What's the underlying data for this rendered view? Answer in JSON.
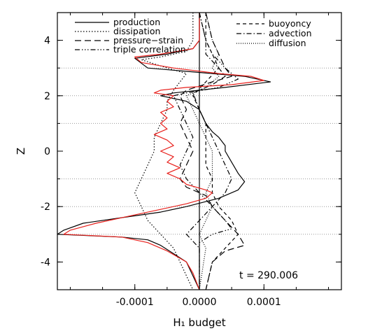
{
  "chart_data": {
    "type": "line",
    "orientation": "vertical-profiles",
    "xlabel": "H₁ budget",
    "ylabel": "Z",
    "xlim": [
      -0.00022,
      0.00022
    ],
    "ylim": [
      -5,
      5
    ],
    "x_ticks": [
      -0.0001,
      0.0,
      0.0001
    ],
    "x_tick_labels": [
      "-0.0001",
      "0.0000",
      "0.0001"
    ],
    "y_ticks": [
      -4,
      -2,
      0,
      2,
      4
    ],
    "y_tick_labels": [
      "-4",
      "-2",
      "0",
      "2",
      "4"
    ],
    "dotted_reference_levels": [
      -3,
      -2,
      -1,
      1,
      2,
      3
    ],
    "annotation": "t = 290.006",
    "legend_left": [
      "production",
      "dissipation",
      "pressure−strain",
      "triple correlation"
    ],
    "legend_right": [
      "buoyoncy",
      "advection",
      "diffusion"
    ],
    "series": [
      {
        "name": "production",
        "style": "solid",
        "color": "#000000",
        "points": [
          [
            0.0,
            5.0
          ],
          [
            0.0,
            4.0
          ],
          [
            -1e-05,
            3.7
          ],
          [
            -5e-05,
            3.5
          ],
          [
            -0.0001,
            3.35
          ],
          [
            -8e-05,
            3.0
          ],
          [
            2e-05,
            2.8
          ],
          [
            7e-05,
            2.7
          ],
          [
            0.00011,
            2.5
          ],
          [
            4e-05,
            2.3
          ],
          [
            -4e-05,
            2.1
          ],
          [
            -6e-05,
            2.0
          ],
          [
            -2e-05,
            1.8
          ],
          [
            0.0,
            1.5
          ],
          [
            1e-05,
            1.0
          ],
          [
            2e-05,
            0.7
          ],
          [
            3e-05,
            0.5
          ],
          [
            4e-05,
            0.2
          ],
          [
            4e-05,
            0.0
          ],
          [
            5e-05,
            -0.4
          ],
          [
            6e-05,
            -0.8
          ],
          [
            7e-05,
            -1.1
          ],
          [
            6e-05,
            -1.4
          ],
          [
            3e-05,
            -1.7
          ],
          [
            -2e-05,
            -2.0
          ],
          [
            -6e-05,
            -2.2
          ],
          [
            -0.00012,
            -2.4
          ],
          [
            -0.00018,
            -2.6
          ],
          [
            -0.00021,
            -2.85
          ],
          [
            -0.00022,
            -3.0
          ],
          [
            -0.00012,
            -3.1
          ],
          [
            -8e-05,
            -3.2
          ],
          [
            -6e-05,
            -3.4
          ],
          [
            -4e-05,
            -3.7
          ],
          [
            -2e-05,
            -4.0
          ],
          [
            -1e-05,
            -4.5
          ],
          [
            0.0,
            -5.0
          ]
        ]
      },
      {
        "name": "dissipation",
        "style": "dotted",
        "color": "#000000",
        "points": [
          [
            -1e-05,
            5.0
          ],
          [
            -1e-05,
            4.0
          ],
          [
            -2e-05,
            3.6
          ],
          [
            -6e-05,
            3.4
          ],
          [
            -9e-05,
            3.3
          ],
          [
            -5e-05,
            3.0
          ],
          [
            -2e-05,
            2.8
          ],
          [
            -3e-05,
            2.5
          ],
          [
            -4e-05,
            2.2
          ],
          [
            -5e-05,
            1.8
          ],
          [
            -5e-05,
            1.5
          ],
          [
            -6e-05,
            1.0
          ],
          [
            -7e-05,
            0.5
          ],
          [
            -7e-05,
            0.0
          ],
          [
            -8e-05,
            -0.5
          ],
          [
            -9e-05,
            -1.0
          ],
          [
            -0.0001,
            -1.5
          ],
          [
            -9e-05,
            -2.0
          ],
          [
            -8e-05,
            -2.5
          ],
          [
            -6e-05,
            -3.0
          ],
          [
            -4e-05,
            -3.5
          ],
          [
            -3e-05,
            -4.0
          ],
          [
            -2e-05,
            -4.5
          ],
          [
            -1e-05,
            -5.0
          ]
        ]
      },
      {
        "name": "pressure−strain",
        "style": "dashed",
        "color": "#000000",
        "points": [
          [
            1e-05,
            5.0
          ],
          [
            2e-05,
            4.0
          ],
          [
            3e-05,
            3.5
          ],
          [
            4e-05,
            3.0
          ],
          [
            5e-05,
            2.7
          ],
          [
            2e-05,
            2.5
          ],
          [
            -2e-05,
            2.2
          ],
          [
            -3e-05,
            2.0
          ],
          [
            -2e-05,
            1.5
          ],
          [
            -3e-05,
            1.0
          ],
          [
            -2e-05,
            0.5
          ],
          [
            -1e-05,
            0.0
          ],
          [
            -2e-05,
            -0.5
          ],
          [
            -3e-05,
            -1.0
          ],
          [
            -2e-05,
            -1.3
          ],
          [
            1e-05,
            -1.6
          ],
          [
            2e-05,
            -2.0
          ],
          [
            4e-05,
            -2.5
          ],
          [
            6e-05,
            -3.0
          ],
          [
            7e-05,
            -3.4
          ],
          [
            4e-05,
            -3.6
          ],
          [
            2e-05,
            -4.0
          ],
          [
            1e-05,
            -5.0
          ]
        ]
      },
      {
        "name": "triple correlation",
        "style": "dashdotdotdot",
        "color": "#000000",
        "points": [
          [
            0.0,
            5.0
          ],
          [
            1e-05,
            4.0
          ],
          [
            2e-05,
            3.5
          ],
          [
            4e-05,
            3.0
          ],
          [
            6e-05,
            2.6
          ],
          [
            3e-05,
            2.3
          ],
          [
            -2e-05,
            2.1
          ],
          [
            -4e-05,
            2.0
          ],
          [
            -3e-05,
            1.5
          ],
          [
            -2e-05,
            1.0
          ],
          [
            -1e-05,
            0.5
          ],
          [
            -2e-05,
            0.0
          ],
          [
            -3e-05,
            -0.5
          ],
          [
            -2e-05,
            -1.0
          ],
          [
            0.0,
            -1.5
          ],
          [
            2e-05,
            -2.0
          ],
          [
            4e-05,
            -2.5
          ],
          [
            5e-05,
            -2.8
          ],
          [
            2e-05,
            -3.0
          ],
          [
            0.0,
            -3.3
          ],
          [
            0.0,
            -5.0
          ]
        ]
      },
      {
        "name": "buoyoncy",
        "style": "dashed-short",
        "color": "#000000",
        "points": [
          [
            1e-05,
            5.0
          ],
          [
            1e-05,
            4.0
          ],
          [
            2e-05,
            3.5
          ],
          [
            3e-05,
            3.0
          ],
          [
            1e-05,
            2.5
          ],
          [
            -1e-05,
            2.0
          ],
          [
            0.0,
            1.5
          ],
          [
            1e-05,
            1.0
          ],
          [
            1e-05,
            0.5
          ],
          [
            1e-05,
            0.0
          ],
          [
            1e-05,
            -0.5
          ],
          [
            2e-05,
            -1.0
          ],
          [
            2e-05,
            -1.5
          ],
          [
            3e-05,
            -2.0
          ],
          [
            5e-05,
            -2.5
          ],
          [
            6e-05,
            -3.0
          ],
          [
            4e-05,
            -3.5
          ],
          [
            2e-05,
            -4.0
          ],
          [
            1e-05,
            -5.0
          ]
        ]
      },
      {
        "name": "advection",
        "style": "dashdot",
        "color": "#000000",
        "points": [
          [
            0.0,
            5.0
          ],
          [
            1e-05,
            4.0
          ],
          [
            1e-05,
            3.5
          ],
          [
            3e-05,
            3.0
          ],
          [
            4e-05,
            2.7
          ],
          [
            2e-05,
            2.4
          ],
          [
            -1e-05,
            2.1
          ],
          [
            0.0,
            1.5
          ],
          [
            1e-05,
            1.0
          ],
          [
            2e-05,
            0.5
          ],
          [
            3e-05,
            0.0
          ],
          [
            4e-05,
            -0.5
          ],
          [
            5e-05,
            -1.0
          ],
          [
            4e-05,
            -1.5
          ],
          [
            2e-05,
            -2.0
          ],
          [
            0.0,
            -2.5
          ],
          [
            -2e-05,
            -3.0
          ],
          [
            0.0,
            -3.5
          ],
          [
            0.0,
            -5.0
          ]
        ]
      },
      {
        "name": "diffusion",
        "style": "finedotted",
        "color": "#000000",
        "points": [
          [
            1e-05,
            5.0
          ],
          [
            2e-05,
            4.0
          ],
          [
            3e-05,
            3.5
          ],
          [
            2e-05,
            3.0
          ],
          [
            3e-05,
            2.7
          ],
          [
            1e-05,
            2.3
          ],
          [
            -2e-05,
            2.0
          ],
          [
            -1e-05,
            1.5
          ],
          [
            0.0,
            1.0
          ],
          [
            1e-05,
            0.5
          ],
          [
            2e-05,
            0.0
          ],
          [
            2e-05,
            -0.5
          ],
          [
            2e-05,
            -1.0
          ],
          [
            1e-05,
            -1.5
          ],
          [
            2e-05,
            -2.0
          ],
          [
            1e-05,
            -2.5
          ],
          [
            0.0,
            -3.0
          ],
          [
            1e-05,
            -3.5
          ],
          [
            0.0,
            -5.0
          ]
        ]
      },
      {
        "color": "#e8201c",
        "style": "solid",
        "points": [
          [
            0.0,
            5.0
          ],
          [
            0.0,
            4.0
          ],
          [
            -1e-05,
            3.7
          ],
          [
            -6e-05,
            3.5
          ],
          [
            -0.0001,
            3.4
          ],
          [
            -9e-05,
            3.2
          ],
          [
            -4e-05,
            3.0
          ],
          [
            3e-05,
            2.8
          ],
          [
            8e-05,
            2.7
          ],
          [
            0.0001,
            2.55
          ],
          [
            5e-05,
            2.4
          ],
          [
            -2e-05,
            2.3
          ],
          [
            -6e-05,
            2.2
          ],
          [
            -7e-05,
            2.1
          ],
          [
            -4e-05,
            2.0
          ],
          [
            -5e-05,
            1.8
          ],
          [
            -4e-05,
            1.6
          ],
          [
            -6e-05,
            1.4
          ],
          [
            -5e-05,
            1.2
          ],
          [
            -6e-05,
            1.0
          ],
          [
            -5e-05,
            0.8
          ],
          [
            -7e-05,
            0.6
          ],
          [
            -5e-05,
            0.4
          ],
          [
            -4e-05,
            0.2
          ],
          [
            -6e-05,
            0.0
          ],
          [
            -4e-05,
            -0.2
          ],
          [
            -5e-05,
            -0.4
          ],
          [
            -3e-05,
            -0.6
          ],
          [
            -5e-05,
            -0.8
          ],
          [
            -3e-05,
            -1.0
          ],
          [
            -2e-05,
            -1.2
          ],
          [
            1e-05,
            -1.4
          ],
          [
            2e-05,
            -1.5
          ],
          [
            1e-05,
            -1.7
          ],
          [
            -2e-05,
            -1.9
          ],
          [
            -6e-05,
            -2.1
          ],
          [
            -0.0001,
            -2.3
          ],
          [
            -0.00016,
            -2.6
          ],
          [
            -0.0002,
            -2.85
          ],
          [
            -0.00021,
            -3.0
          ],
          [
            -0.00012,
            -3.1
          ],
          [
            -8e-05,
            -3.3
          ],
          [
            -5e-05,
            -3.6
          ],
          [
            -2e-05,
            -4.0
          ],
          [
            -1e-05,
            -4.4
          ],
          [
            0.0,
            -5.0
          ]
        ]
      }
    ]
  }
}
